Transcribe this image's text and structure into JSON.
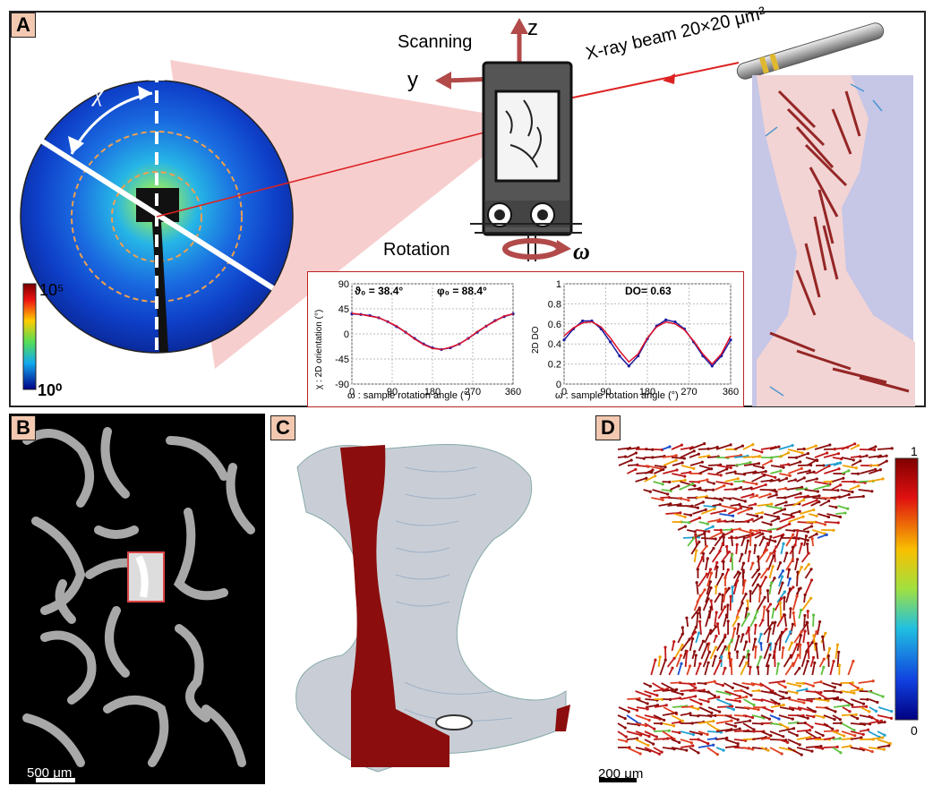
{
  "panels": {
    "A": "A",
    "B": "B",
    "C": "C",
    "D": "D"
  },
  "panelA": {
    "axis_z": "z",
    "axis_y": "y",
    "scanning": "Scanning",
    "beam_label": "X-ray beam 20×20 μm²",
    "rotation": "Rotation",
    "omega": "ω",
    "chi": "χ",
    "colorbar_top": "10⁵",
    "colorbar_bottom": "10⁰"
  },
  "plot1": {
    "annot_theta": "ϑ₀ = 38.4°",
    "annot_phi": "φ₀ = 88.4°",
    "ylabel": "χ : 2D orientation (°)",
    "xlabel": "ω : sample rotation angle (°)",
    "yticks": [
      "90",
      "45",
      "0",
      "-45",
      "-90"
    ],
    "xticks": [
      "0",
      "90",
      "180",
      "270",
      "360"
    ]
  },
  "plot2": {
    "annot": "DO= 0.63",
    "ylabel": "2D DO",
    "xlabel": "ω : sample rotation angle (°)",
    "yticks": [
      "1",
      "0.8",
      "0.6",
      "0.4",
      "0.2",
      "0"
    ],
    "xticks": [
      "0",
      "90",
      "180",
      "270",
      "360"
    ]
  },
  "panelB": {
    "scale": "500 μm"
  },
  "panelD": {
    "scale": "200 μm",
    "cbar_top": "1",
    "cbar_bottom": "0"
  },
  "colors": {
    "dark_red": "#8b0d0d",
    "arrow_red": "#b0484f",
    "frame": "#222222",
    "letter_bg": "#f2c9b0"
  },
  "chart_data": [
    {
      "type": "line",
      "xlabel": "ω : sample rotation angle (°)",
      "ylabel": "χ : 2D orientation (°)",
      "xlim": [
        0,
        360
      ],
      "ylim": [
        -90,
        90
      ],
      "x": [
        0,
        20,
        40,
        60,
        80,
        100,
        120,
        140,
        160,
        180,
        200,
        220,
        240,
        260,
        280,
        300,
        320,
        340,
        360
      ],
      "series": [
        {
          "values": [
            36,
            35,
            33,
            29,
            22,
            13,
            3,
            -8,
            -18,
            -25,
            -28,
            -25,
            -18,
            -8,
            3,
            14,
            24,
            31,
            36
          ]
        },
        {
          "values": [
            37,
            35,
            32,
            29,
            22,
            14,
            3,
            -9,
            -19,
            -26,
            -28,
            -24,
            -18,
            -8,
            4,
            14,
            23,
            32,
            36
          ]
        }
      ]
    },
    {
      "type": "line",
      "xlabel": "ω : sample rotation angle (°)",
      "ylabel": "2D DO",
      "xlim": [
        0,
        360
      ],
      "ylim": [
        0,
        1
      ],
      "x": [
        0,
        20,
        40,
        60,
        80,
        100,
        120,
        140,
        160,
        180,
        200,
        220,
        240,
        260,
        280,
        300,
        320,
        340,
        360
      ],
      "series": [
        {
          "values": [
            0.44,
            0.55,
            0.63,
            0.63,
            0.55,
            0.42,
            0.28,
            0.18,
            0.28,
            0.45,
            0.58,
            0.64,
            0.62,
            0.55,
            0.42,
            0.28,
            0.18,
            0.28,
            0.44
          ]
        },
        {
          "values": [
            0.48,
            0.56,
            0.61,
            0.62,
            0.57,
            0.46,
            0.33,
            0.22,
            0.3,
            0.46,
            0.57,
            0.62,
            0.6,
            0.54,
            0.43,
            0.3,
            0.2,
            0.3,
            0.48
          ]
        }
      ]
    }
  ]
}
